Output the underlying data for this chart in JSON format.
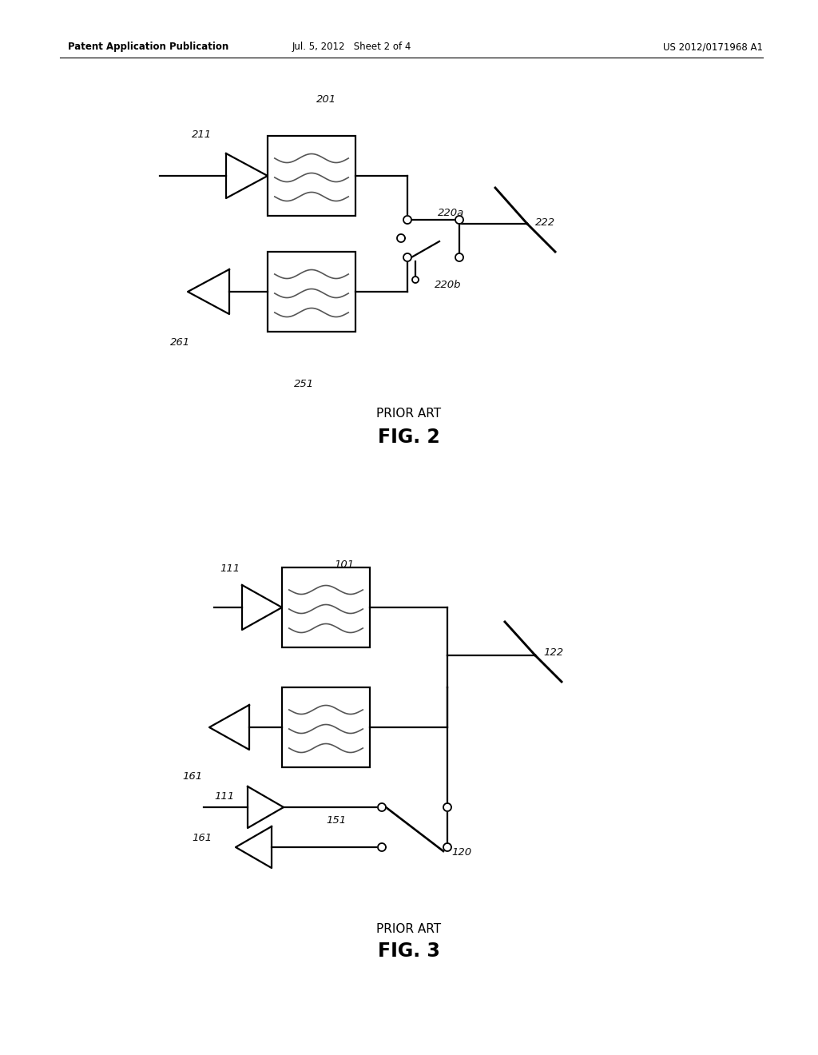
{
  "bg_color": "#ffffff",
  "line_color": "#000000",
  "header_left": "Patent Application Publication",
  "header_mid": "Jul. 5, 2012   Sheet 2 of 4",
  "header_right": "US 2012/0171968 A1",
  "fig2_caption_small": "PRIOR ART",
  "fig2_caption_large": "FIG. 2",
  "fig3_caption_small": "PRIOR ART",
  "fig3_caption_large": "FIG. 3"
}
